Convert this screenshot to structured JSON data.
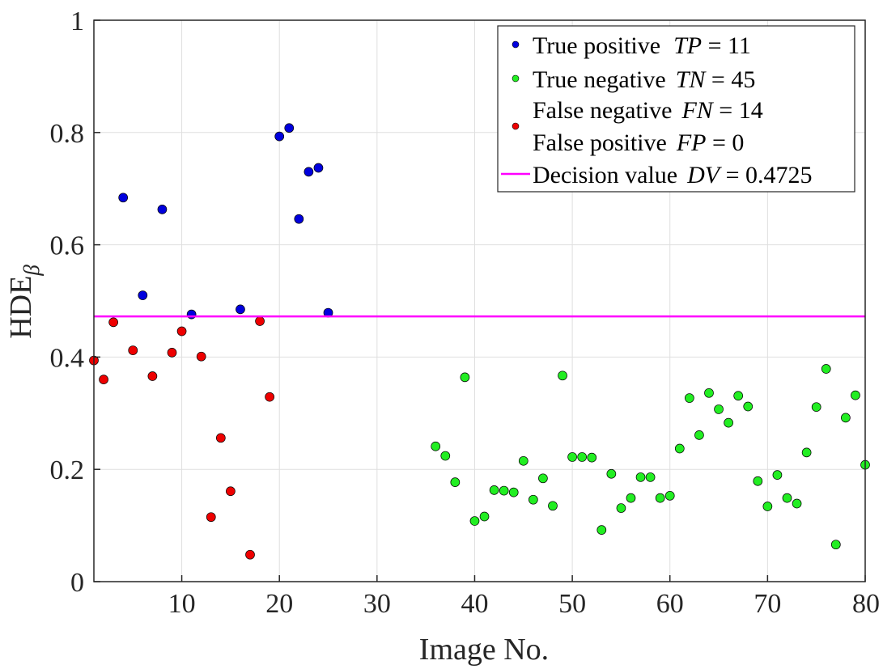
{
  "chart_data": {
    "type": "scatter",
    "title": "",
    "xlabel": "Image No.",
    "ylabel": "HDE",
    "ylabel_subscript": "β",
    "xlim": [
      1,
      80
    ],
    "ylim": [
      0,
      1
    ],
    "xticks": [
      10,
      20,
      30,
      40,
      50,
      60,
      70,
      80
    ],
    "yticks": [
      0,
      0.2,
      0.4,
      0.6,
      0.8,
      1
    ],
    "ytick_labels": [
      "0",
      "0.2",
      "0.4",
      "0.6",
      "0.8",
      "1"
    ],
    "grid": true,
    "legend_position": "top-right",
    "colors": {
      "true_positive": "#0000dd",
      "true_negative": "#22ee22",
      "false_negative": "#ee0000",
      "decision": "#ff00ff",
      "axis": "#262626"
    },
    "series": [
      {
        "name": "True positive",
        "legend_label": "True positive",
        "stat_symbol": "TP",
        "stat_value": "11",
        "color": "#0000dd",
        "points": [
          [
            4,
            0.684
          ],
          [
            6,
            0.51
          ],
          [
            8,
            0.663
          ],
          [
            11,
            0.476
          ],
          [
            16,
            0.485
          ],
          [
            20,
            0.793
          ],
          [
            21,
            0.808
          ],
          [
            22,
            0.646
          ],
          [
            23,
            0.73
          ],
          [
            24,
            0.737
          ],
          [
            25,
            0.479
          ]
        ]
      },
      {
        "name": "True negative",
        "legend_label": "True negative",
        "stat_symbol": "TN",
        "stat_value": "45",
        "color": "#22ee22",
        "points": [
          [
            36,
            0.241
          ],
          [
            37,
            0.224
          ],
          [
            38,
            0.177
          ],
          [
            39,
            0.364
          ],
          [
            40,
            0.108
          ],
          [
            41,
            0.116
          ],
          [
            42,
            0.163
          ],
          [
            43,
            0.162
          ],
          [
            44,
            0.159
          ],
          [
            45,
            0.215
          ],
          [
            46,
            0.146
          ],
          [
            47,
            0.184
          ],
          [
            48,
            0.135
          ],
          [
            49,
            0.367
          ],
          [
            50,
            0.222
          ],
          [
            51,
            0.222
          ],
          [
            52,
            0.221
          ],
          [
            53,
            0.092
          ],
          [
            54,
            0.192
          ],
          [
            55,
            0.131
          ],
          [
            56,
            0.149
          ],
          [
            57,
            0.186
          ],
          [
            58,
            0.186
          ],
          [
            59,
            0.149
          ],
          [
            60,
            0.153
          ],
          [
            61,
            0.237
          ],
          [
            62,
            0.327
          ],
          [
            63,
            0.261
          ],
          [
            64,
            0.336
          ],
          [
            65,
            0.307
          ],
          [
            66,
            0.283
          ],
          [
            67,
            0.331
          ],
          [
            68,
            0.312
          ],
          [
            69,
            0.179
          ],
          [
            70,
            0.134
          ],
          [
            71,
            0.19
          ],
          [
            72,
            0.149
          ],
          [
            73,
            0.139
          ],
          [
            74,
            0.23
          ],
          [
            75,
            0.311
          ],
          [
            76,
            0.379
          ],
          [
            77,
            0.066
          ],
          [
            78,
            0.292
          ],
          [
            79,
            0.332
          ],
          [
            80,
            0.208
          ]
        ]
      },
      {
        "name": "False negative",
        "legend_label": "False negative",
        "stat_symbol": "FN",
        "stat_value": "14",
        "color": "#ee0000",
        "points": [
          [
            1,
            0.394
          ],
          [
            2,
            0.36
          ],
          [
            3,
            0.462
          ],
          [
            5,
            0.412
          ],
          [
            7,
            0.366
          ],
          [
            9,
            0.408
          ],
          [
            10,
            0.446
          ],
          [
            12,
            0.401
          ],
          [
            13,
            0.115
          ],
          [
            14,
            0.256
          ],
          [
            15,
            0.161
          ],
          [
            17,
            0.048
          ],
          [
            18,
            0.464
          ],
          [
            19,
            0.329
          ]
        ]
      },
      {
        "name": "False positive",
        "legend_label": "False positive",
        "stat_symbol": "FP",
        "stat_value": "0",
        "color": "#ee0000",
        "points": []
      }
    ],
    "decision_line": {
      "legend_label": "Decision value",
      "stat_symbol": "DV",
      "stat_value": "0.4725",
      "value": 0.4725,
      "color": "#ff00ff"
    }
  }
}
